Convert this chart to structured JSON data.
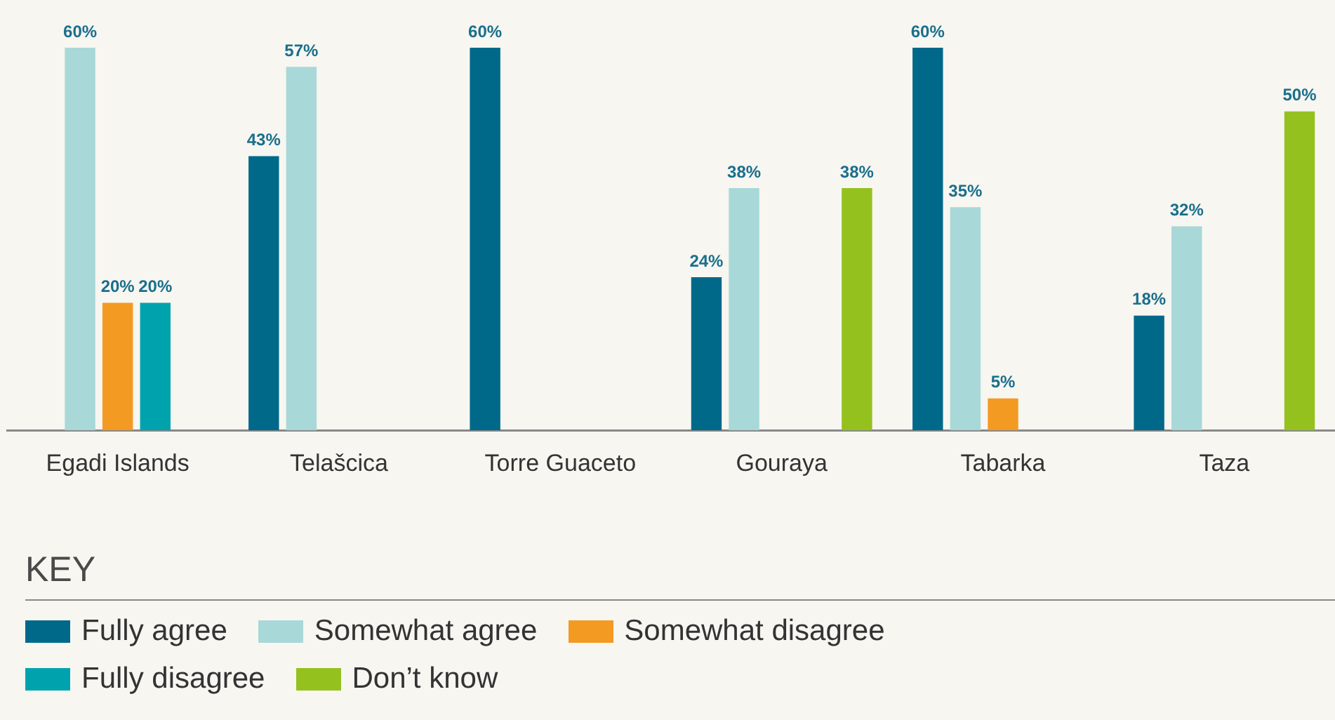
{
  "chart_data": {
    "type": "bar",
    "categories": [
      "Egadi Islands",
      "Telašcica",
      "Torre Guaceto",
      "Gouraya",
      "Tabarka",
      "Taza"
    ],
    "legend_title": "KEY",
    "legend": "bottom",
    "series": [
      {
        "name": "Fully agree",
        "color": "#00698a",
        "values": [
          null,
          43,
          60,
          24,
          60,
          18
        ],
        "value_labels": [
          null,
          "43%",
          "60%",
          "24%",
          "60%",
          "18%"
        ]
      },
      {
        "name": "Somewhat agree",
        "color": "#a8d8d8",
        "values": [
          60,
          57,
          null,
          38,
          35,
          32
        ],
        "value_labels": [
          "60%",
          "57%",
          null,
          "38%",
          "35%",
          "32%"
        ]
      },
      {
        "name": "Somewhat disagree",
        "color": "#f39a23",
        "values": [
          20,
          null,
          null,
          null,
          5,
          null
        ],
        "value_labels": [
          "20%",
          null,
          null,
          null,
          "5%",
          null
        ]
      },
      {
        "name": "Fully disagree",
        "color": "#00a3ad",
        "values": [
          20,
          null,
          null,
          null,
          null,
          null
        ],
        "value_labels": [
          "20%",
          null,
          null,
          null,
          null,
          null
        ]
      },
      {
        "name": "Don’t know",
        "color": "#95c11f",
        "values": [
          null,
          null,
          null,
          38,
          null,
          50
        ],
        "value_labels": [
          null,
          null,
          null,
          "38%",
          null,
          "50%"
        ]
      }
    ]
  }
}
